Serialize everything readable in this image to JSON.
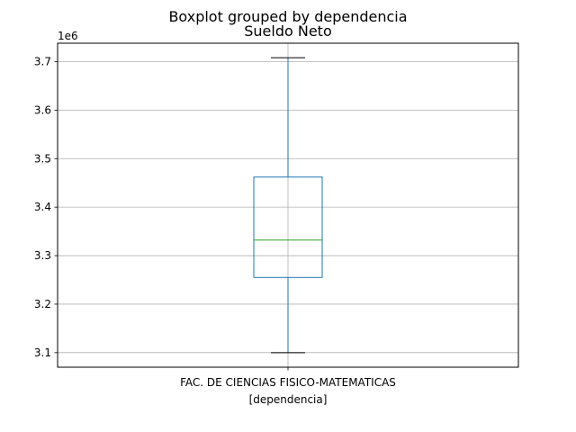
{
  "suptitle": "Boxplot grouped by dependencia",
  "chart_data": {
    "type": "boxplot",
    "title": "Sueldo Neto",
    "xlabel": "[dependencia]",
    "ylabel": "",
    "y_offset_label": "1e6",
    "categories": [
      "FAC. DE CIENCIAS FISICO-MATEMATICAS"
    ],
    "boxes": [
      {
        "category": "FAC. DE CIENCIAS FISICO-MATEMATICAS",
        "whisker_low": 3.1,
        "q1": 3.255,
        "median": 3.332,
        "q3": 3.462,
        "whisker_high": 3.708
      }
    ],
    "ylim": [
      3.07,
      3.738
    ],
    "yticks": [
      3.1,
      3.2,
      3.3,
      3.4,
      3.5,
      3.6,
      3.7
    ],
    "ytick_labels": [
      "3.1",
      "3.2",
      "3.3",
      "3.4",
      "3.5",
      "3.6",
      "3.7"
    ],
    "grid": true,
    "colors": {
      "box": "#1f77b4",
      "median": "#2ca02c",
      "cap": "#000000",
      "grid": "#b0b0b0"
    }
  }
}
